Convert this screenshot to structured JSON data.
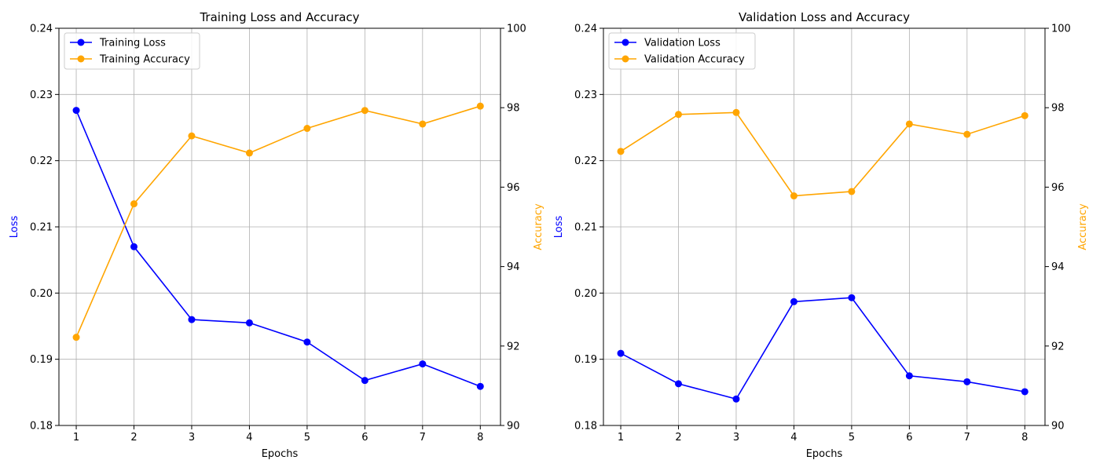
{
  "chart_data": [
    {
      "type": "line",
      "title": "Training Loss and Accuracy",
      "xlabel": "Epochs",
      "ylabel": "Loss",
      "y2label": "Accuracy",
      "x": [
        1,
        2,
        3,
        4,
        5,
        6,
        7,
        8
      ],
      "ylim": [
        0.18,
        0.24
      ],
      "y2lim": [
        90,
        100
      ],
      "yticks": [
        "0.18",
        "0.19",
        "0.20",
        "0.21",
        "0.22",
        "0.23",
        "0.24"
      ],
      "y2ticks": [
        "90",
        "92",
        "94",
        "96",
        "98",
        "100"
      ],
      "grid": true,
      "legend_position": "upper-left",
      "series": [
        {
          "name": "Training Loss",
          "axis": "left",
          "color": "#0000ff",
          "values": [
            0.2276,
            0.207,
            0.196,
            0.1955,
            0.1926,
            0.1868,
            0.1893,
            0.1859
          ]
        },
        {
          "name": "Training Accuracy",
          "axis": "right",
          "color": "#ffa500",
          "values": [
            92.22,
            95.58,
            97.29,
            96.86,
            97.48,
            97.93,
            97.59,
            98.04
          ]
        }
      ]
    },
    {
      "type": "line",
      "title": "Validation Loss and Accuracy",
      "xlabel": "Epochs",
      "ylabel": "Loss",
      "y2label": "Accuracy",
      "x": [
        1,
        2,
        3,
        4,
        5,
        6,
        7,
        8
      ],
      "ylim": [
        0.18,
        0.24
      ],
      "y2lim": [
        90,
        100
      ],
      "yticks": [
        "0.18",
        "0.19",
        "0.20",
        "0.21",
        "0.22",
        "0.23",
        "0.24"
      ],
      "y2ticks": [
        "90",
        "92",
        "94",
        "96",
        "98",
        "100"
      ],
      "grid": true,
      "legend_position": "upper-left",
      "series": [
        {
          "name": "Validation Loss",
          "axis": "left",
          "color": "#0000ff",
          "values": [
            0.1909,
            0.1863,
            0.184,
            0.1987,
            0.1993,
            0.1875,
            0.1866,
            0.1851
          ]
        },
        {
          "name": "Validation Accuracy",
          "axis": "right",
          "color": "#ffa500",
          "values": [
            96.9,
            97.83,
            97.88,
            95.78,
            95.89,
            97.59,
            97.33,
            97.8
          ]
        }
      ]
    }
  ]
}
